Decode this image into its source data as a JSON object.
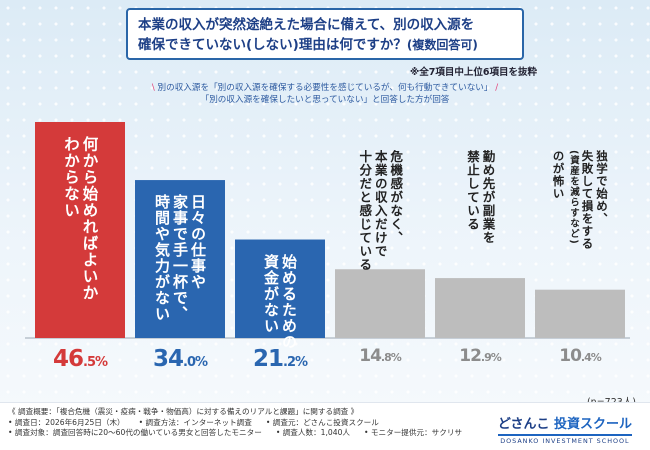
{
  "title": {
    "line1": "本業の収入が突然途絶えた場合に備えて、別の収入源を",
    "line2": "確保できていない(しない)理由は何ですか？",
    "line2_suffix": "(複数回答可)"
  },
  "notes": {
    "top_right": "※全7項目中上位6項目を抜粋",
    "criteria_line1": "別の収入源を「別の収入源を確保する必要性を感じているが、何も行動できていない」",
    "criteria_line2": "「別の収入源を確保したいと思っていない」と回答した方が回答",
    "sample_size": "(n=723人)"
  },
  "colors": {
    "bar1": "#d43a3a",
    "bar2": "#2a66b0",
    "bar3": "#2a66b0",
    "gray": "#bdbdbd",
    "red_pct": "#d43a3a",
    "blue_pct": "#2a66b0",
    "gray_pct": "#8c8c8c"
  },
  "chart_data": {
    "type": "bar",
    "categories": [
      "何から始めればよいかわからない",
      "日々の仕事や家事で手一杯で、時間や気力がない",
      "始めるための資金がない",
      "危機感がなく、本業の収入だけで十分だと感じている",
      "勤め先が副業を禁止している",
      "独学で始め、失敗して損をする(資産を減らすなど)のが怖い"
    ],
    "values": [
      46.5,
      34.0,
      21.2,
      14.8,
      12.9,
      10.4
    ],
    "labels": [
      "46.5",
      "34.0",
      "21.2",
      "14.8",
      "12.9",
      "10.4"
    ],
    "unit": "%",
    "ylim": [
      0,
      50
    ]
  },
  "bar_labels": [
    [
      "何から始めればよいか",
      "わからない"
    ],
    [
      "日々の仕事や",
      "家事で手一杯で、",
      "時間や気力がない"
    ],
    [
      "始めるための",
      "資金がない"
    ],
    [
      "危機感がなく、",
      "本業の収入だけで",
      "十分だと感じている"
    ],
    [
      "勤め先が副業を",
      "禁止している"
    ],
    [
      "独学で始め、",
      "失敗して損をする",
      "(資産を減らすなど)",
      "のが怖い"
    ]
  ],
  "footer": {
    "line1": "《 調査概要：「複合危機（震災・疫病・戦争・物価高）に対する備えのリアルと課題」に関する調査 》",
    "survey_date": "• 調査日：2026年6月25日（木）",
    "survey_method": "• 調査方法：インターネット調査",
    "survey_source": "• 調査元：どさんこ投資スクール",
    "survey_target": "• 調査対象：調査回答時に20〜60代の働いている男女と回答したモニター",
    "survey_count": "• 調査人数：1,040人",
    "monitor": "• モニター提供元：サクリサ",
    "brand_name_a": "どさんこ",
    "brand_name_b": "投資スクール",
    "brand_sub": "DOSANKO INVESTMENT SCHOOL"
  }
}
